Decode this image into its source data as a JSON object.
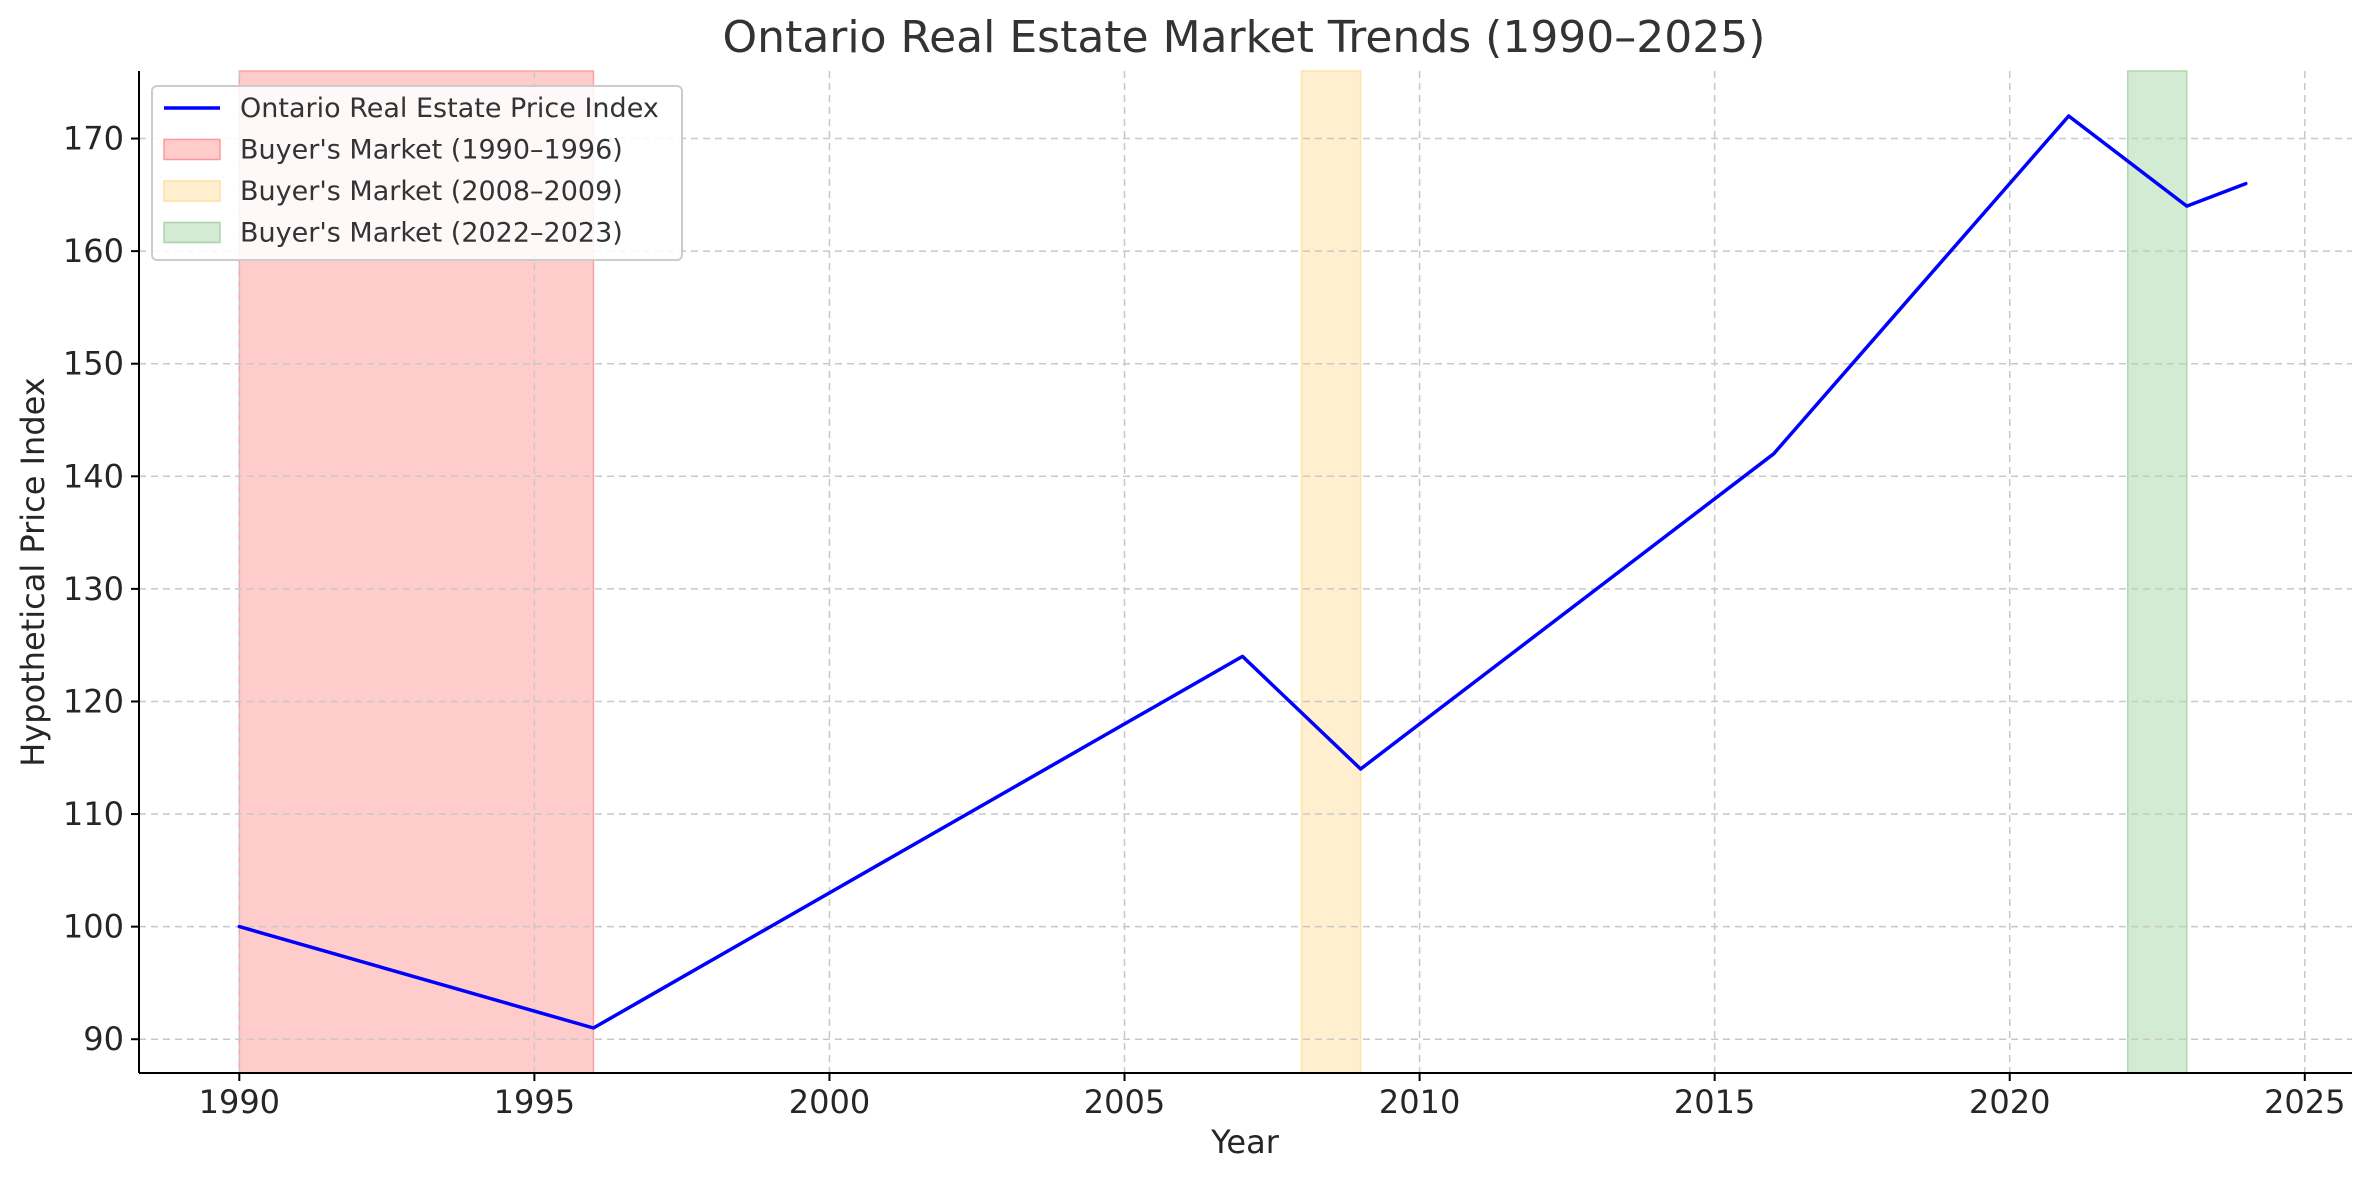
{
  "chart_data": {
    "type": "line",
    "title": "Ontario Real Estate Market Trends (1990–2025)",
    "xlabel": "Year",
    "ylabel": "Hypothetical Price Index",
    "xlim": [
      1988.3,
      2025.8
    ],
    "ylim": [
      87,
      176
    ],
    "xticks": [
      1990,
      1995,
      2000,
      2005,
      2010,
      2015,
      2020,
      2025
    ],
    "yticks": [
      90,
      100,
      110,
      120,
      130,
      140,
      150,
      160,
      170
    ],
    "grid": true,
    "legend_position": "upper-left",
    "series": [
      {
        "name": "Ontario Real Estate Price Index",
        "color": "#0000ff",
        "x": [
          1990,
          1996,
          2007,
          2009,
          2016,
          2021,
          2023,
          2024
        ],
        "y": [
          100,
          91,
          124,
          114,
          142,
          172,
          164,
          166
        ]
      }
    ],
    "shaded_regions": [
      {
        "name": "Buyer's Market (1990–1996)",
        "x_start": 1990,
        "x_end": 1996,
        "color": "#ff9999"
      },
      {
        "name": "Buyer's Market (2008–2009)",
        "x_start": 2008,
        "x_end": 2009,
        "color": "#ffe0a0"
      },
      {
        "name": "Buyer's Market (2022–2023)",
        "x_start": 2022,
        "x_end": 2023,
        "color": "#a8d5a8"
      }
    ]
  }
}
